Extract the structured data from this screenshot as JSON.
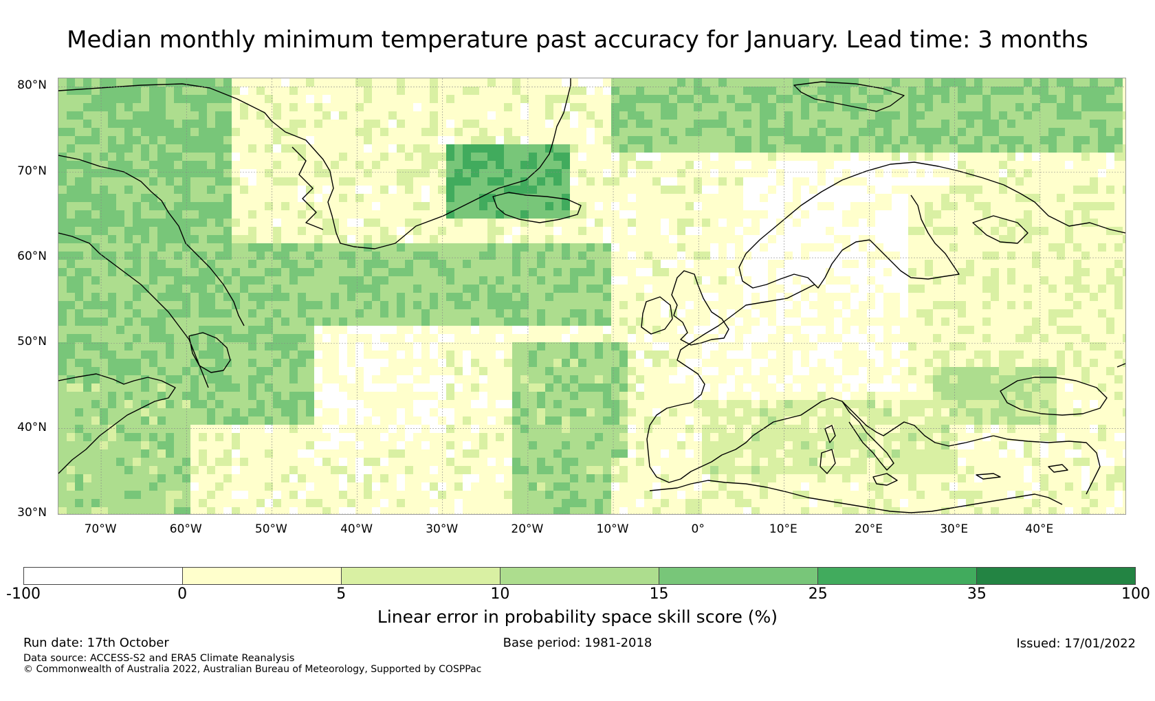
{
  "title": "Median monthly minimum temperature past accuracy for January. Lead time: 3 months",
  "map": {
    "lon_range": [
      -75,
      50
    ],
    "lat_range": [
      30,
      81
    ],
    "lat_ticks": [
      "80°N",
      "70°N",
      "60°N",
      "50°N",
      "40°N",
      "30°N"
    ],
    "lat_tick_values": [
      80,
      70,
      60,
      50,
      40,
      30
    ],
    "lon_ticks": [
      "70°W",
      "60°W",
      "50°W",
      "40°W",
      "30°W",
      "20°W",
      "10°W",
      "0°",
      "10°E",
      "20°E",
      "30°E",
      "40°E"
    ],
    "lon_tick_values": [
      -70,
      -60,
      -50,
      -40,
      -30,
      -20,
      -10,
      0,
      10,
      20,
      30,
      40
    ],
    "grid_color": "#888888",
    "coast_color": "#000000"
  },
  "colorbar": {
    "label": "Linear error in probability space skill score (%)",
    "ticks": [
      "-100",
      "0",
      "5",
      "10",
      "15",
      "25",
      "35",
      "100"
    ],
    "colors": [
      "#ffffff",
      "#ffffcc",
      "#d9f0a3",
      "#addd8e",
      "#78c679",
      "#41ab5d",
      "#238443"
    ]
  },
  "footer": {
    "run_date": "Run date: 17th October",
    "base_period": "Base period: 1981-2018",
    "issued": "Issued: 17/01/2022",
    "data_source": "Data source: ACCESS-S2 and ERA5 Climate Reanalysis",
    "copyright": "© Commonwealth of Australia 2022, Australian Bureau of Meteorology, Supported by COSPPac"
  }
}
